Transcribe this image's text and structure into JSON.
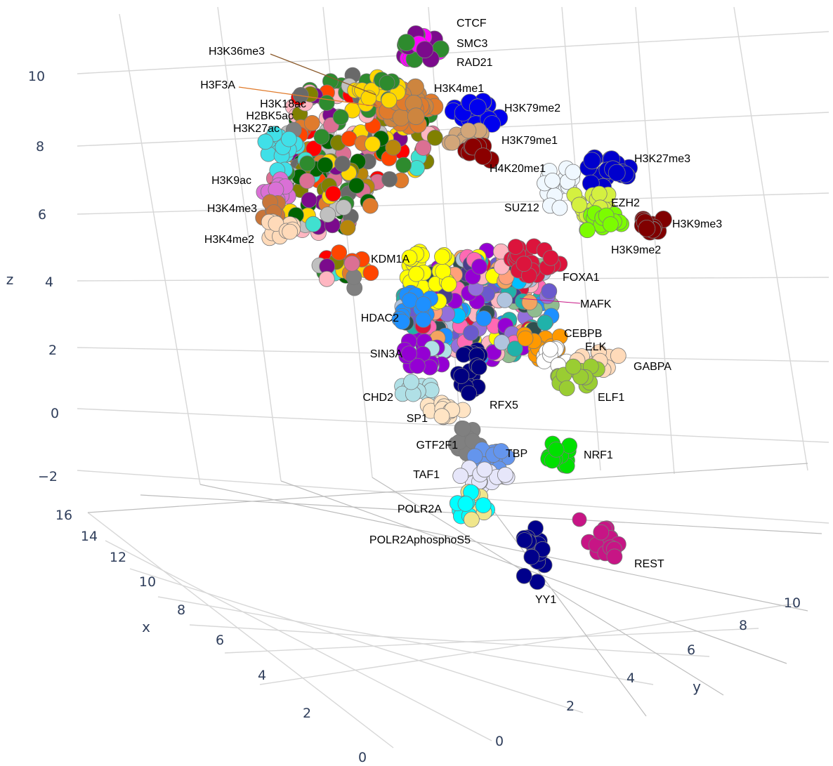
{
  "chart_data": {
    "type": "scatter",
    "title": "",
    "axes": {
      "x": {
        "label": "x",
        "ticks": [
          "0",
          "2",
          "4",
          "6",
          "8",
          "10",
          "12",
          "14",
          "16"
        ]
      },
      "y": {
        "label": "y",
        "ticks": [
          "0",
          "2",
          "4",
          "6",
          "8",
          "10"
        ]
      },
      "z": {
        "label": "z",
        "ticks": [
          "−2",
          "0",
          "2",
          "4",
          "6",
          "8",
          "10"
        ]
      }
    },
    "grid": true,
    "legend": "none",
    "labels": [
      "CTCF",
      "SMC3",
      "RAD21",
      "H3K36me3",
      "H3F3A",
      "H3K4me1",
      "H3K18ac",
      "H2BK5ac",
      "H3K27ac",
      "H3K79me2",
      "H3K79me1",
      "H4K20me1",
      "H3K27me3",
      "H3K9ac",
      "SUZ12",
      "EZH2",
      "H3K4me3",
      "H3K9me3",
      "H3K9me2",
      "H3K4me2",
      "KDM1A",
      "FOXA1",
      "MAFK",
      "HDAC2",
      "CEBPB",
      "ELK",
      "GABPA",
      "SIN3A",
      "ELF1",
      "CHD2",
      "RFX5",
      "SP1",
      "GTF2F1",
      "TBP",
      "NRF1",
      "TAF1",
      "POLR2A",
      "POLR2AphosphoS5",
      "REST",
      "YY1"
    ],
    "clusters": [
      {
        "name": "CTCF",
        "color": "#7B0A8C"
      },
      {
        "name": "SMC3",
        "color": "#FF00FF"
      },
      {
        "name": "RAD21",
        "color": "#2E8B2E"
      },
      {
        "name": "H3K36me3",
        "color": "#FFD700"
      },
      {
        "name": "H3F3A",
        "color": "#E07B2C"
      },
      {
        "name": "H3K4me1",
        "color": "#CD853F"
      },
      {
        "name": "H3K79me2",
        "color": "#0000EE"
      },
      {
        "name": "H3K79me1",
        "color": "#D2A679"
      },
      {
        "name": "H4K20me1",
        "color": "#8B0000"
      },
      {
        "name": "H3K27me3",
        "color": "#0000CD"
      },
      {
        "name": "H3K27ac",
        "color": "#40E0E8"
      },
      {
        "name": "H3K9ac",
        "color": "#DA70D6"
      },
      {
        "name": "H3K4me3",
        "color": "#C8763A"
      },
      {
        "name": "H3K4me2",
        "color": "#FFDAB9"
      },
      {
        "name": "SUZ12",
        "color": "#F0F8FF"
      },
      {
        "name": "EZH2",
        "color": "#D4F040"
      },
      {
        "name": "H3K9me3",
        "color": "#800000"
      },
      {
        "name": "H3K9me2",
        "color": "#7CFC00"
      },
      {
        "name": "KDM1A",
        "color": "#FFFF00"
      },
      {
        "name": "FOXA1",
        "color": "#DC143C"
      },
      {
        "name": "MAFK",
        "color": "#FF69B4"
      },
      {
        "name": "HDAC2",
        "color": "#1E90FF"
      },
      {
        "name": "CEBPB",
        "color": "#FF9900"
      },
      {
        "name": "ELK",
        "color": "#FFFFFF"
      },
      {
        "name": "GABPA",
        "color": "#FFDAB9"
      },
      {
        "name": "ELF1",
        "color": "#9ACD32"
      },
      {
        "name": "SIN3A",
        "color": "#9400D3"
      },
      {
        "name": "CHD2",
        "color": "#B0E0E6"
      },
      {
        "name": "RFX5",
        "color": "#000080"
      },
      {
        "name": "SP1",
        "color": "#FFE4C4"
      },
      {
        "name": "GTF2F1",
        "color": "#808080"
      },
      {
        "name": "TBP",
        "color": "#6495ED"
      },
      {
        "name": "NRF1",
        "color": "#00E000"
      },
      {
        "name": "TAF1",
        "color": "#E6E6FA"
      },
      {
        "name": "POLR2A",
        "color": "#F0E68C"
      },
      {
        "name": "POLR2AphosphoS5",
        "color": "#00FFFF"
      },
      {
        "name": "REST",
        "color": "#C71585"
      },
      {
        "name": "YY1",
        "color": "#00008B"
      }
    ]
  }
}
